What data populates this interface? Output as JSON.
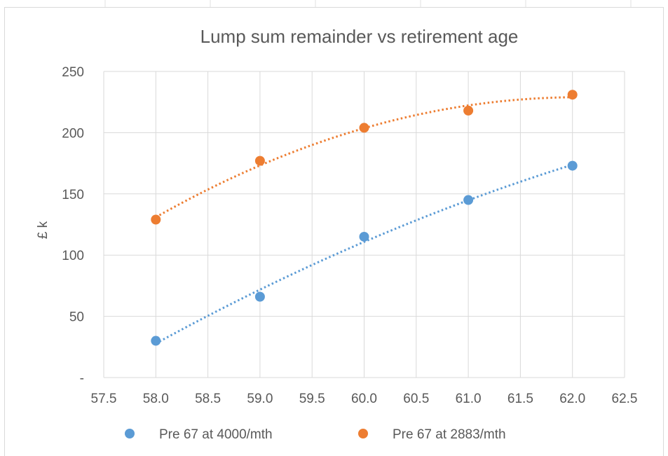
{
  "chart_data": {
    "type": "scatter",
    "title": "Lump sum remainder vs retirement age",
    "xlabel": "",
    "ylabel": "£ k",
    "xlim": [
      57.5,
      62.5
    ],
    "ylim": [
      0,
      250
    ],
    "x_ticks": [
      "57.5",
      "58.0",
      "58.5",
      "59.0",
      "59.5",
      "60.0",
      "60.5",
      "61.0",
      "61.5",
      "62.0",
      "62.5"
    ],
    "y_ticks": [
      "-",
      "50",
      "100",
      "150",
      "200",
      "250"
    ],
    "grid": true,
    "legend_position": "bottom",
    "trendline": "dotted polynomial",
    "series": [
      {
        "name": "Pre 67 at 4000/mth",
        "color": "#5B9BD5",
        "x": [
          58,
          59,
          60,
          61,
          62
        ],
        "y": [
          30,
          66,
          115,
          145,
          173
        ]
      },
      {
        "name": "Pre 67 at 2883/mth",
        "color": "#ED7D31",
        "x": [
          58,
          59,
          60,
          61,
          62
        ],
        "y": [
          129,
          177,
          204,
          218,
          231
        ]
      }
    ]
  }
}
